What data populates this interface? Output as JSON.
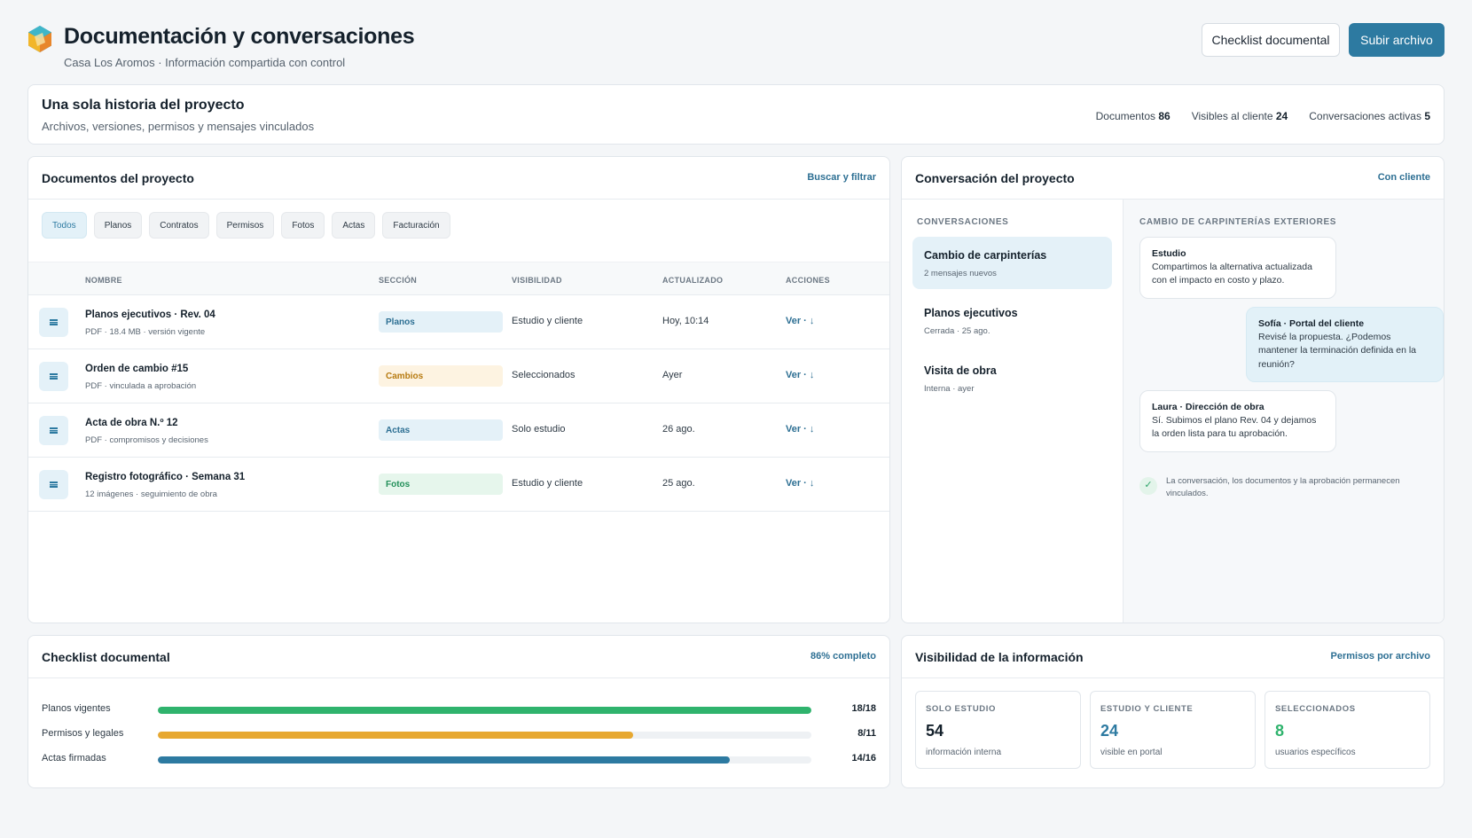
{
  "header": {
    "title": "Documentación y conversaciones",
    "subtitle": "Casa Los Aromos · Información compartida con control",
    "checklist_button": "Checklist documental",
    "upload_button": "Subir archivo"
  },
  "summary": {
    "title": "Una sola historia del proyecto",
    "subtitle": "Archivos, versiones, permisos y mensajes vinculados",
    "stats": [
      {
        "label": "Documentos",
        "value": "86"
      },
      {
        "label": "Visibles al cliente",
        "value": "24"
      },
      {
        "label": "Conversaciones activas",
        "value": "5"
      }
    ]
  },
  "documents": {
    "title": "Documentos del proyecto",
    "link": "Buscar y filtrar",
    "filters": [
      "Todos",
      "Planos",
      "Contratos",
      "Permisos",
      "Fotos",
      "Actas",
      "Facturación"
    ],
    "active_filter": "Todos",
    "columns": [
      "NOMBRE",
      "SECCIÓN",
      "VISIBILIDAD",
      "ACTUALIZADO",
      "ACCIONES"
    ],
    "rows": [
      {
        "name": "Planos ejecutivos · Rev. 04",
        "meta": "PDF · 18.4 MB · versión vigente",
        "section": "Planos",
        "visibility": "Estudio y cliente",
        "updated": "Hoy, 10:14",
        "action": "Ver · ↓"
      },
      {
        "name": "Orden de cambio #15",
        "meta": "PDF · vinculada a aprobación",
        "section": "Cambios",
        "visibility": "Seleccionados",
        "updated": "Ayer",
        "action": "Ver · ↓"
      },
      {
        "name": "Acta de obra N.º 12",
        "meta": "PDF · compromisos y decisiones",
        "section": "Actas",
        "visibility": "Solo estudio",
        "updated": "26 ago.",
        "action": "Ver · ↓"
      },
      {
        "name": "Registro fotográfico · Semana 31",
        "meta": "12 imágenes · seguimiento de obra",
        "section": "Fotos",
        "visibility": "Estudio y cliente",
        "updated": "25 ago.",
        "action": "Ver · ↓"
      }
    ]
  },
  "conversation": {
    "title": "Conversación del proyecto",
    "link": "Con cliente",
    "list_label": "CONVERSACIONES",
    "items": [
      {
        "title": "Cambio de carpinterías",
        "sub": "2 mensajes nuevos"
      },
      {
        "title": "Planos ejecutivos",
        "sub": "Cerrada · 25 ago."
      },
      {
        "title": "Visita de obra",
        "sub": "Interna · ayer"
      }
    ],
    "thread_label": "CAMBIO DE CARPINTERÍAS EXTERIORES",
    "messages": [
      {
        "author": "Estudio",
        "text": "Compartimos la alternativa actualizada con el impacto en costo y plazo."
      },
      {
        "author": "Sofía · Portal del cliente",
        "text": "Revisé la propuesta. ¿Podemos mantener la terminación definida en la reunión?"
      },
      {
        "author": "Laura · Dirección de obra",
        "text": "Sí. Subimos el plano Rev. 04 y dejamos la orden lista para tu aprobación."
      }
    ],
    "note": "La conversación, los documentos y la aprobación permanecen vinculados."
  },
  "checklist": {
    "title": "Checklist documental",
    "link": "86% completo",
    "items": [
      {
        "label": "Planos vigentes",
        "count": "18/18",
        "fraction": 1.0,
        "color": "#2fb36d"
      },
      {
        "label": "Permisos y legales",
        "count": "8/11",
        "fraction": 0.727,
        "color": "#e7a831"
      },
      {
        "label": "Actas firmadas",
        "count": "14/16",
        "fraction": 0.875,
        "color": "#2d7aa1"
      }
    ]
  },
  "visibility": {
    "title": "Visibilidad de la información",
    "link": "Permisos por archivo",
    "boxes": [
      {
        "label": "SOLO ESTUDIO",
        "value": "54",
        "sub": "información interna",
        "color": "#15212c"
      },
      {
        "label": "ESTUDIO Y CLIENTE",
        "value": "24",
        "sub": "visible en portal",
        "color": "#2d7aa1"
      },
      {
        "label": "SELECCIONADOS",
        "value": "8",
        "sub": "usuarios específicos",
        "color": "#2fb36d"
      }
    ]
  },
  "colors": {
    "primary": "#2d7aa1",
    "badge_planos_bg": "#e4f1f8",
    "badge_cambios_bg": "#fdf3e1",
    "badge_actas_bg": "#e4f1f8",
    "badge_fotos_bg": "#e6f6ec"
  }
}
